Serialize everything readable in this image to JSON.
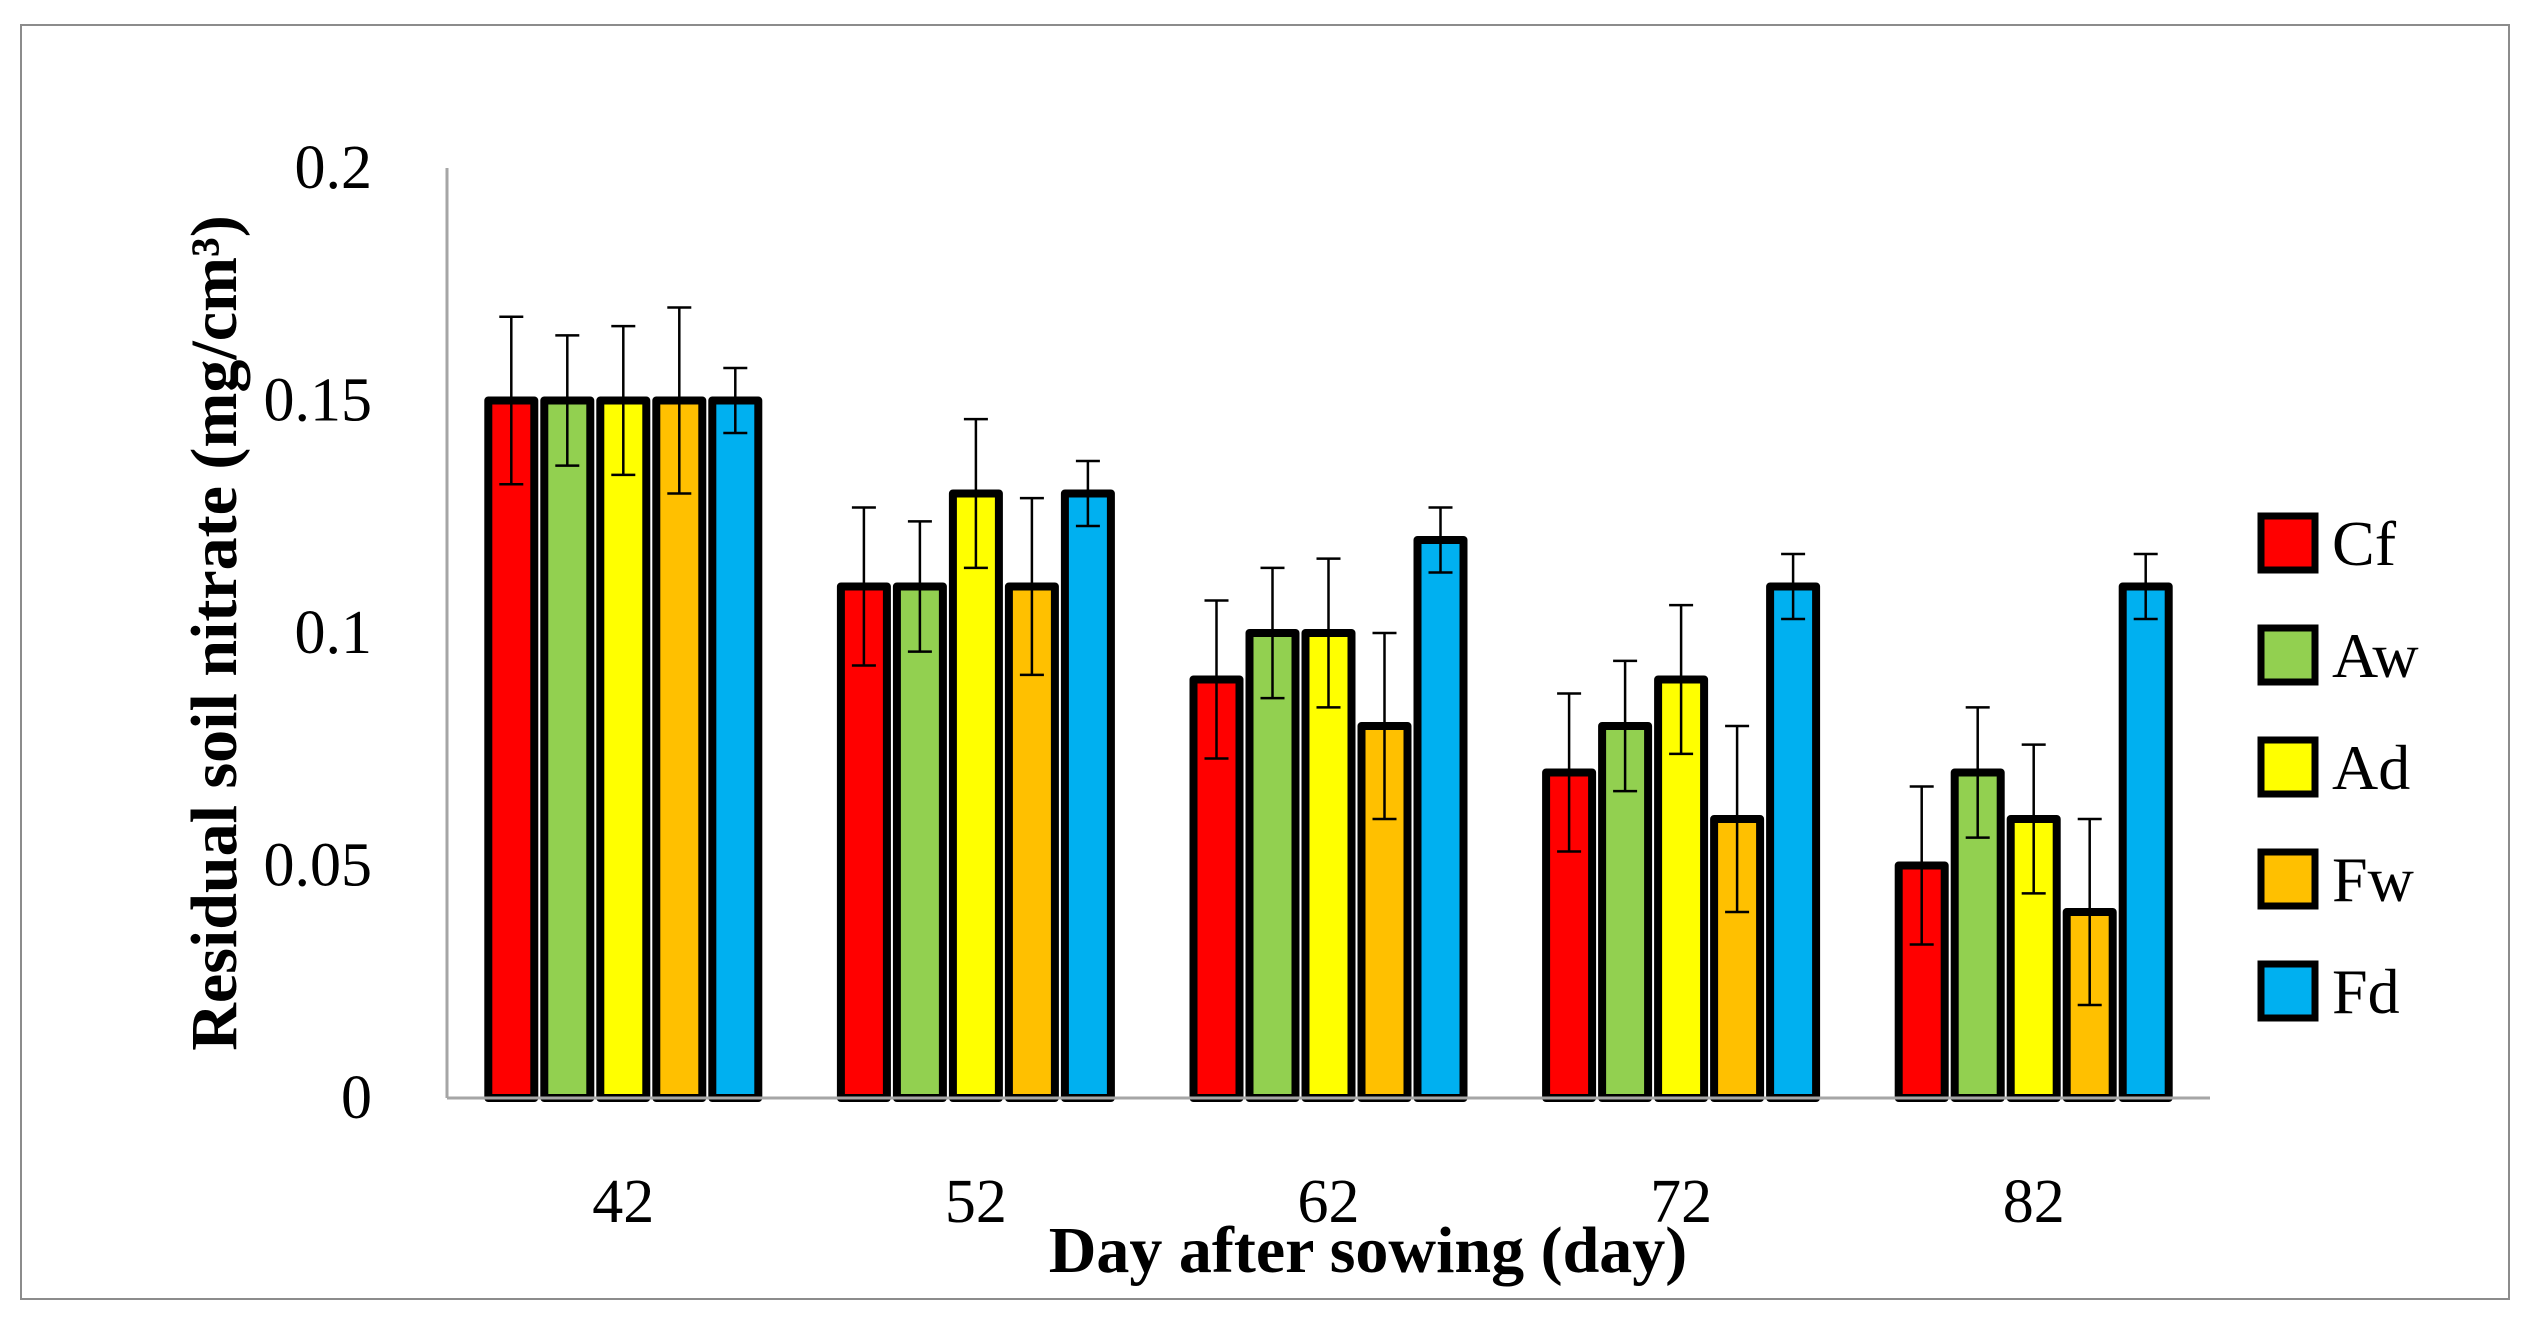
{
  "chart_data": {
    "type": "bar",
    "xlabel": "Day after sowing (day)",
    "ylabel": "Residual soil nitrate (mg/cm³)",
    "ylim": [
      0,
      0.2
    ],
    "yticks": [
      "0",
      "0.05",
      "0.1",
      "0.15",
      "0.2"
    ],
    "ytick_values": [
      0,
      0.05,
      0.1,
      0.15,
      0.2
    ],
    "categories": [
      "42",
      "52",
      "62",
      "72",
      "82"
    ],
    "grid": false,
    "legend_position": "right",
    "series": [
      {
        "name": "Cf",
        "color": "#ff0000",
        "values": [
          0.15,
          0.11,
          0.09,
          0.07,
          0.05
        ],
        "error": [
          0.018,
          0.017,
          0.017,
          0.017,
          0.017
        ]
      },
      {
        "name": "Aw",
        "color": "#92d050",
        "values": [
          0.15,
          0.11,
          0.1,
          0.08,
          0.07
        ],
        "error": [
          0.014,
          0.014,
          0.014,
          0.014,
          0.014
        ]
      },
      {
        "name": "Ad",
        "color": "#ffff00",
        "values": [
          0.15,
          0.13,
          0.1,
          0.09,
          0.06
        ],
        "error": [
          0.016,
          0.016,
          0.016,
          0.016,
          0.016
        ]
      },
      {
        "name": "Fw",
        "color": "#ffc000",
        "values": [
          0.15,
          0.11,
          0.08,
          0.06,
          0.04
        ],
        "error": [
          0.02,
          0.019,
          0.02,
          0.02,
          0.02
        ]
      },
      {
        "name": "Fd",
        "color": "#00b0f0",
        "values": [
          0.15,
          0.13,
          0.12,
          0.11,
          0.11
        ],
        "error": [
          0.007,
          0.007,
          0.007,
          0.007,
          0.007
        ]
      }
    ]
  }
}
